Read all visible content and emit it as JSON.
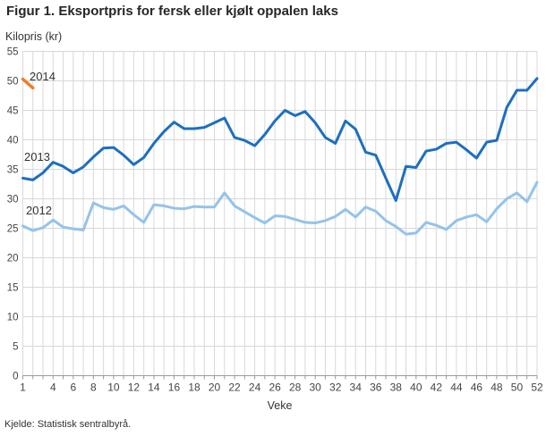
{
  "page": {
    "title": "Figur 1. Eksportpris for fersk eller kjølt oppalen laks",
    "source": "Kjelde: Statistisk sentralbyrå."
  },
  "chart_data": {
    "type": "line",
    "title": "Figur 1. Eksportpris for fersk eller kjølt oppalen laks",
    "ylabel": "Kilopris (kr)",
    "xlabel": "Veke",
    "x_unit": "week",
    "x_start_week": 1,
    "x_end_week": 52,
    "xlim": [
      1,
      52
    ],
    "ylim": [
      0,
      55
    ],
    "ytick_step": 5,
    "x_tick_labels": [
      1,
      4,
      6,
      8,
      10,
      12,
      14,
      16,
      18,
      20,
      22,
      24,
      26,
      28,
      30,
      32,
      34,
      36,
      38,
      40,
      42,
      44,
      46,
      48,
      50,
      52
    ],
    "grid": "vertical line every week, horizontal line every 5 kr",
    "legend_position": "inline labels at left of lines",
    "series": [
      {
        "name": "2014",
        "color": "#ee7e30",
        "values": [
          50.3,
          48.8
        ]
      },
      {
        "name": "2013",
        "color": "#1d6fc0",
        "values": [
          33.5,
          33.2,
          34.4,
          36.2,
          35.5,
          34.4,
          35.4,
          37.1,
          38.6,
          38.7,
          37.4,
          35.8,
          37.0,
          39.4,
          41.4,
          43.0,
          41.9,
          41.9,
          42.1,
          42.9,
          43.7,
          40.4,
          39.9,
          39.0,
          40.9,
          43.2,
          45.0,
          44.1,
          44.8,
          42.9,
          40.4,
          39.4,
          43.2,
          41.8,
          37.9,
          37.4,
          33.5,
          29.7,
          35.5,
          35.3,
          38.1,
          38.4,
          39.4,
          39.6,
          38.3,
          36.9,
          39.6,
          39.9,
          45.5,
          48.4,
          48.4,
          50.4
        ]
      },
      {
        "name": "2012",
        "color": "#94c3ea",
        "values": [
          25.4,
          24.6,
          25.1,
          26.4,
          25.2,
          24.9,
          24.7,
          29.3,
          28.5,
          28.2,
          28.8,
          27.3,
          26.0,
          29.0,
          28.8,
          28.4,
          28.3,
          28.7,
          28.6,
          28.6,
          31.0,
          28.8,
          27.8,
          26.8,
          25.9,
          27.1,
          27.0,
          26.5,
          26.0,
          25.9,
          26.3,
          27.0,
          28.2,
          26.9,
          28.6,
          27.9,
          26.3,
          25.3,
          24.0,
          24.2,
          26.0,
          25.5,
          24.8,
          26.3,
          26.9,
          27.3,
          26.1,
          28.3,
          30.0,
          31.0,
          29.5,
          32.8
        ]
      }
    ]
  }
}
